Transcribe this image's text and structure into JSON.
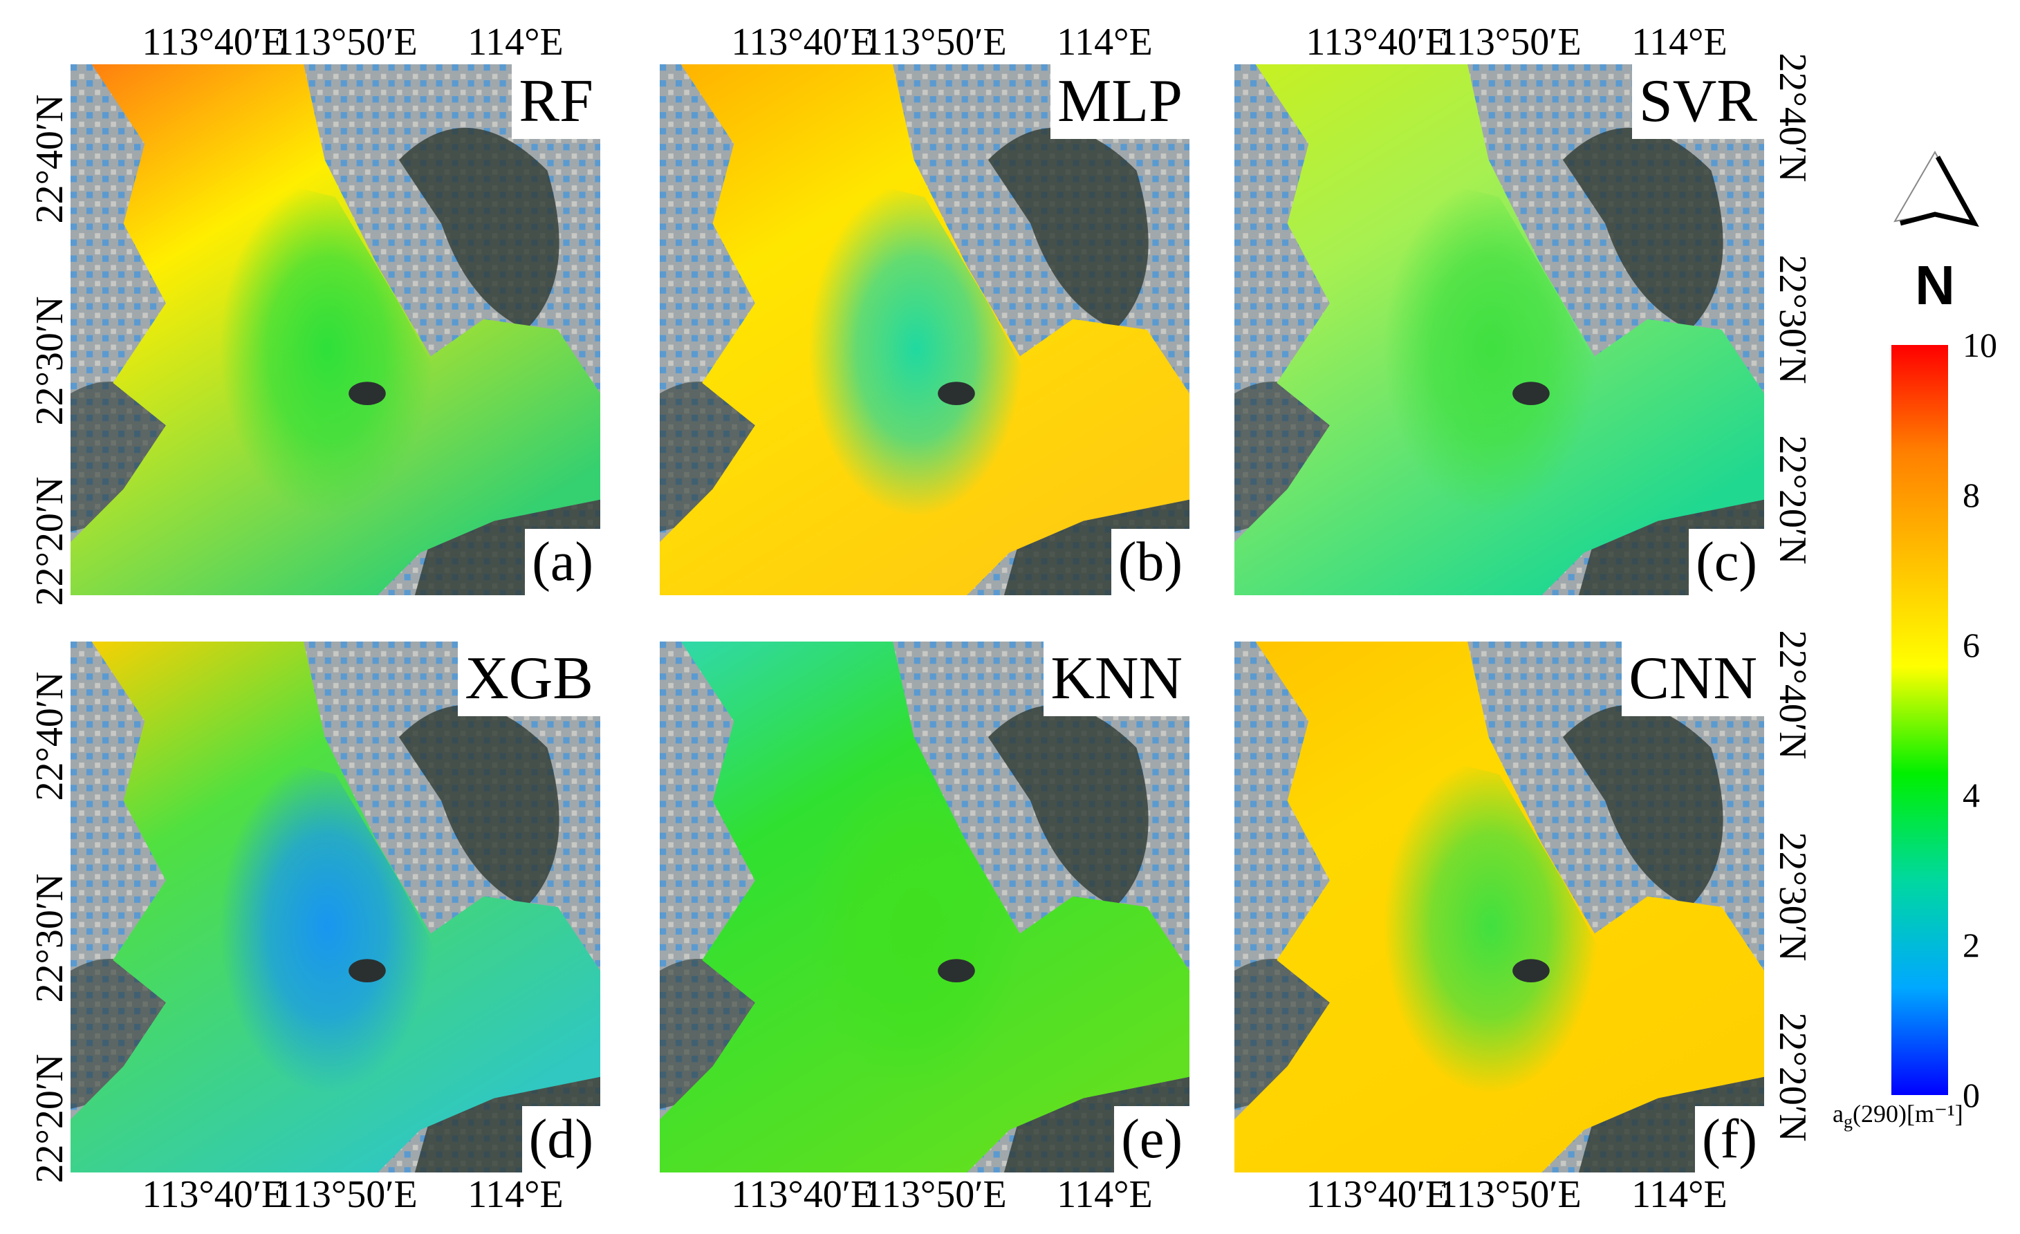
{
  "panels": [
    {
      "model": "RF",
      "letter": "(a)",
      "colors": {
        "edge": "#ff7a10",
        "upper": "#ffee00",
        "center": "#2ee03a",
        "lower": "#35d070"
      }
    },
    {
      "model": "MLP",
      "letter": "(b)",
      "colors": {
        "edge": "#ffb000",
        "upper": "#ffe600",
        "center": "#20d9a0",
        "lower": "#ffcc10"
      }
    },
    {
      "model": "SVR",
      "letter": "(c)",
      "colors": {
        "edge": "#c8f020",
        "upper": "#a8f050",
        "center": "#40e040",
        "lower": "#20d890"
      }
    },
    {
      "model": "XGB",
      "letter": "(d)",
      "colors": {
        "edge": "#ffd000",
        "upper": "#50e040",
        "center": "#1896f0",
        "lower": "#30c8c0"
      }
    },
    {
      "model": "KNN",
      "letter": "(e)",
      "colors": {
        "edge": "#30d8b0",
        "upper": "#30e030",
        "center": "#40e020",
        "lower": "#60e020"
      }
    },
    {
      "model": "CNN",
      "letter": "(f)",
      "colors": {
        "edge": "#ffc400",
        "upper": "#ffd800",
        "center": "#40e040",
        "lower": "#ffd000"
      }
    }
  ],
  "lon_labels": [
    "113°40′E",
    "113°50′E",
    "114°E"
  ],
  "lat_labels": [
    "22°40′N",
    "22°30′N",
    "22°20′N"
  ],
  "colorbar": {
    "ticks": [
      "10",
      "8",
      "6",
      "4",
      "2",
      "0"
    ],
    "range": [
      0,
      10
    ],
    "label_main": "a",
    "label_sub": "g",
    "label_rest": "(290)[m⁻¹]",
    "stops": [
      "#0000ff",
      "#00a8ff",
      "#00d8a0",
      "#00f000",
      "#ffff00",
      "#ffc000",
      "#ff8000",
      "#ff0000"
    ]
  },
  "north_arrow": {
    "label": "N",
    "icon": "north-arrow-icon"
  },
  "land_colors": {
    "urban": "#9aa3a8",
    "mountain": "#2f3a33",
    "island": "#2a3030"
  }
}
